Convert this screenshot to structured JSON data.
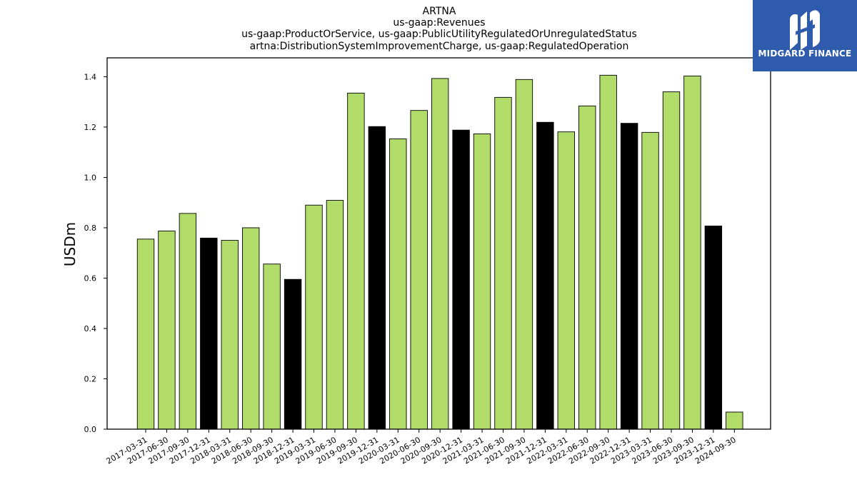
{
  "title_lines": [
    "ARTNA",
    "us-gaap:Revenues",
    "us-gaap:ProductOrService, us-gaap:PublicUtilityRegulatedOrUnregulatedStatus",
    "artna:DistributionSystemImprovementCharge, us-gaap:RegulatedOperation"
  ],
  "logo": {
    "text": "MIDGARD FINANCE",
    "bg_color": "#2e5bab"
  },
  "chart_data": {
    "type": "bar",
    "title": "ARTNA",
    "ylabel": "USDm",
    "xlabel": "",
    "ylim": [
      0,
      1.475
    ],
    "yticks": [
      "0.0",
      "0.2",
      "0.4",
      "0.6",
      "0.8",
      "1.0",
      "1.2",
      "1.4"
    ],
    "grid": false,
    "colors": {
      "quarter": "#b2dc6a",
      "year_end": "#000000",
      "edge": "#000000"
    },
    "categories": [
      "2017-03-31",
      "2017-06-30",
      "2017-09-30",
      "2017-12-31",
      "2018-03-31",
      "2018-06-30",
      "2018-09-30",
      "2018-12-31",
      "2019-03-31",
      "2019-06-30",
      "2019-09-30",
      "2019-12-31",
      "2020-03-31",
      "2020-06-30",
      "2020-09-30",
      "2020-12-31",
      "2021-03-31",
      "2021-06-30",
      "2021-09-30",
      "2021-12-31",
      "2022-03-31",
      "2022-06-30",
      "2022-09-30",
      "2022-12-31",
      "2023-03-31",
      "2023-06-30",
      "2023-09-30",
      "2023-12-31",
      "2024-09-30"
    ],
    "values": [
      0.755,
      0.787,
      0.857,
      0.759,
      0.75,
      0.8,
      0.656,
      0.595,
      0.89,
      0.909,
      1.335,
      1.202,
      1.153,
      1.266,
      1.393,
      1.188,
      1.173,
      1.318,
      1.389,
      1.219,
      1.181,
      1.284,
      1.406,
      1.215,
      1.179,
      1.34,
      1.403,
      0.807,
      0.068
    ],
    "year_end_flags": [
      false,
      false,
      false,
      true,
      false,
      false,
      false,
      true,
      false,
      false,
      false,
      true,
      false,
      false,
      false,
      true,
      false,
      false,
      false,
      true,
      false,
      false,
      false,
      true,
      false,
      false,
      false,
      true,
      false
    ]
  }
}
